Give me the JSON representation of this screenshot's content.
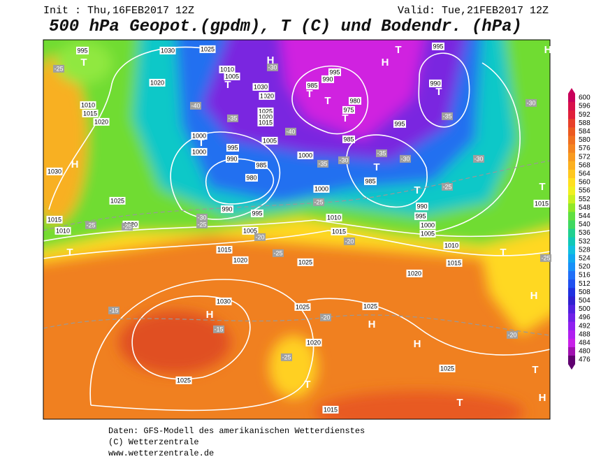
{
  "header": {
    "init": "Init : Thu,16FEB2017 12Z",
    "valid": "Valid: Tue,21FEB2017 12Z",
    "title": "500 hPa Geopot.(gpdm), T (C) und Bodendr. (hPa)"
  },
  "colorbar": {
    "levels": [
      600,
      596,
      592,
      588,
      584,
      580,
      576,
      572,
      568,
      564,
      560,
      556,
      552,
      548,
      544,
      540,
      536,
      532,
      528,
      524,
      520,
      516,
      512,
      508,
      504,
      500,
      496,
      492,
      488,
      484,
      480,
      476
    ],
    "colors": [
      "#c8005a",
      "#d8104a",
      "#e0203a",
      "#e8402a",
      "#ec5a20",
      "#f07020",
      "#f48420",
      "#f89a20",
      "#fcb020",
      "#ffc820",
      "#ffe020",
      "#f0f020",
      "#c8f020",
      "#90e828",
      "#60e040",
      "#40d860",
      "#20d090",
      "#10c8b8",
      "#10c0e0",
      "#10a8f0",
      "#1890f8",
      "#2070f8",
      "#2050f0",
      "#2030e0",
      "#3020d0",
      "#5020e0",
      "#7020e8",
      "#9020f0",
      "#b020f0",
      "#c820e8",
      "#a010b0",
      "#600070"
    ]
  },
  "map": {
    "isobar_labels": [
      "995",
      "1030",
      "1025",
      "1010",
      "1005",
      "1020",
      "1010",
      "1015",
      "1020",
      "1030",
      "1020",
      "1025",
      "1020",
      "1015",
      "985",
      "990",
      "995",
      "980",
      "975",
      "985",
      "995",
      "990",
      "995",
      "1000",
      "1000",
      "995",
      "990",
      "985",
      "980",
      "1000",
      "1005",
      "1000",
      "985",
      "990",
      "995",
      "1000",
      "1005",
      "1010",
      "1015",
      "1010",
      "1015",
      "1005",
      "995",
      "990",
      "1025",
      "1020",
      "1015",
      "1010",
      "1030",
      "1015",
      "1020",
      "1025",
      "1020",
      "1030",
      "1025",
      "1025",
      "1020",
      "1025",
      "1025",
      "1015",
      "1015"
    ],
    "temperature_labels": [
      "-25",
      "-30",
      "-40",
      "-35",
      "-40",
      "-35",
      "-30",
      "-35",
      "-30",
      "-35",
      "-30",
      "-30",
      "-25",
      "-25",
      "-30",
      "-25",
      "-25",
      "-20",
      "-20",
      "-25",
      "-20",
      "-25",
      "-15",
      "-15",
      "-20",
      "-25",
      "-25"
    ],
    "pressure_centers": [
      "T",
      "H",
      "H",
      "T",
      "H",
      "T",
      "T",
      "T",
      "T",
      "T",
      "T",
      "T",
      "T",
      "T",
      "H",
      "T",
      "T",
      "T",
      "H",
      "H",
      "H",
      "H",
      "T",
      "T",
      "T",
      "H"
    ]
  },
  "footer": {
    "lines": [
      "Daten: GFS-Modell des amerikanischen Wetterdienstes",
      "(C) Wetterzentrale",
      "www.wetterzentrale.de"
    ]
  }
}
